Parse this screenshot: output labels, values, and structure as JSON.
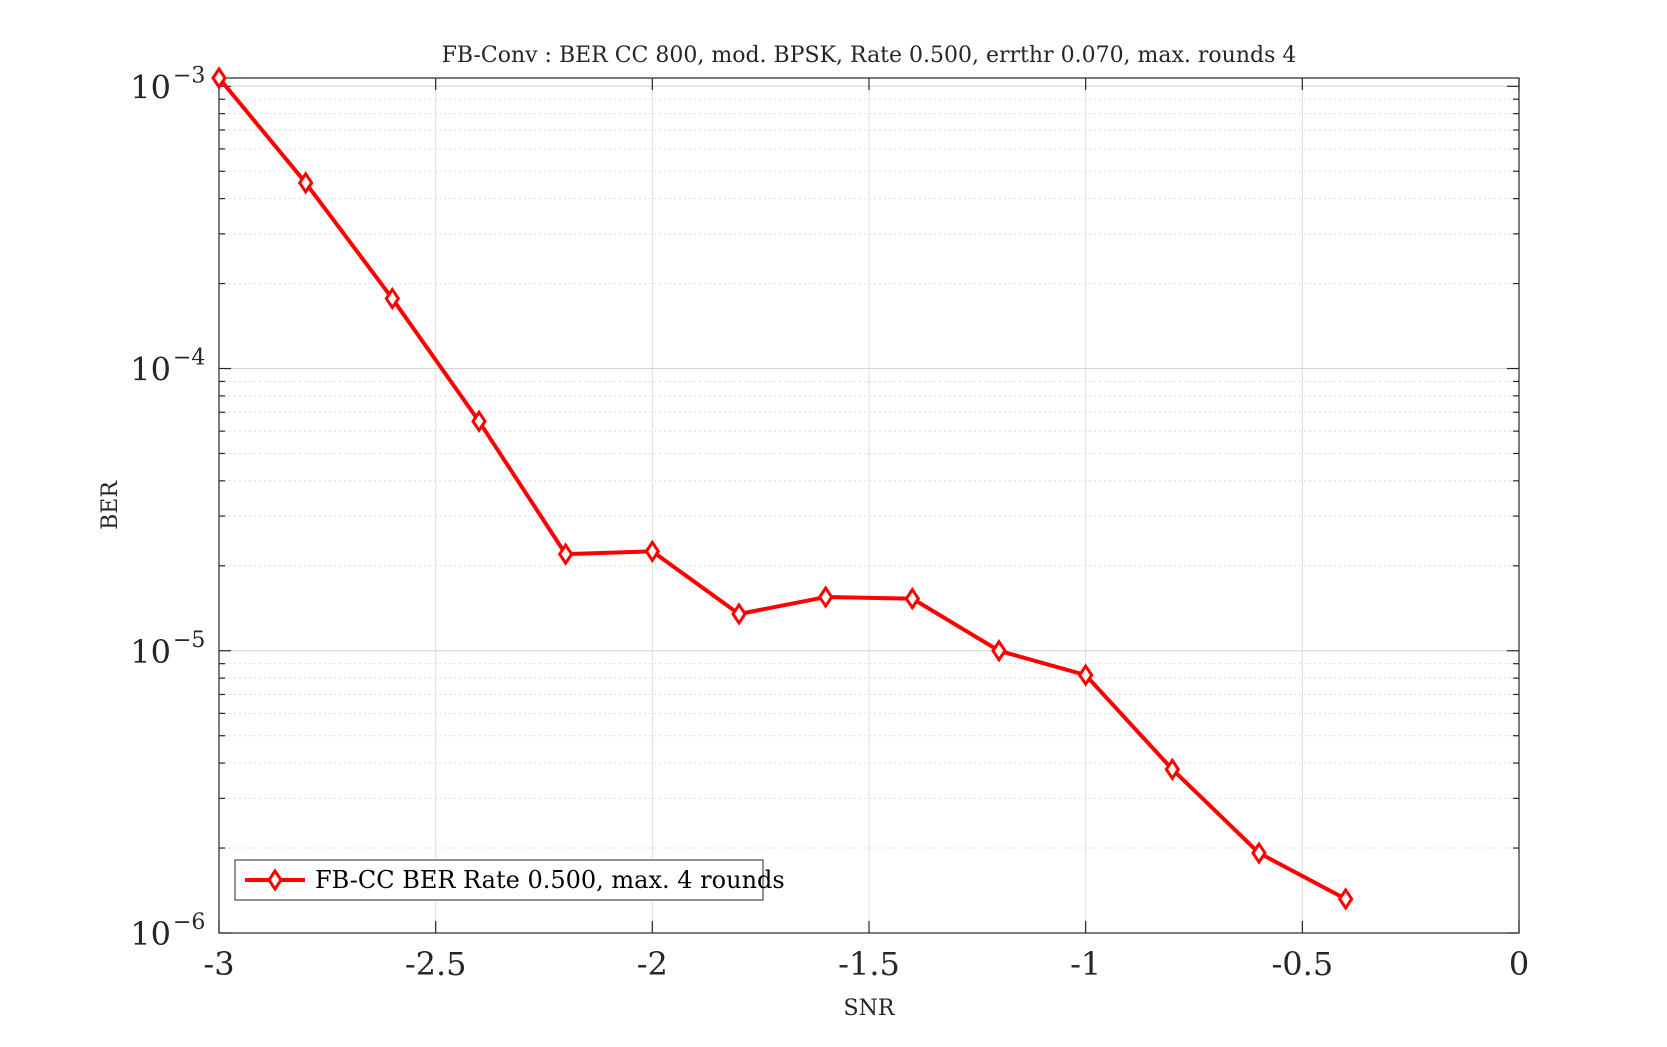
{
  "chart_data": {
    "type": "line",
    "title": "FB-Conv : BER CC 800, mod. BPSK, Rate 0.500, errthr 0.070, max. rounds 4",
    "xlabel": "SNR",
    "ylabel": "BER",
    "xlim": [
      -3,
      0
    ],
    "ylim": [
      1e-06,
      0.00107
    ],
    "yscale": "log",
    "grid": true,
    "legend_location": "bottom-left",
    "x_ticks": [
      {
        "value": -3,
        "label": "-3"
      },
      {
        "value": -2.5,
        "label": "-2.5"
      },
      {
        "value": -2,
        "label": "-2"
      },
      {
        "value": -1.5,
        "label": "-1.5"
      },
      {
        "value": -1,
        "label": "-1"
      },
      {
        "value": -0.5,
        "label": "-0.5"
      },
      {
        "value": 0,
        "label": "0"
      }
    ],
    "y_ticks": [
      {
        "value": 1e-06,
        "base": "10",
        "exp": "−6"
      },
      {
        "value": 1e-05,
        "base": "10",
        "exp": "−5"
      },
      {
        "value": 0.0001,
        "base": "10",
        "exp": "−4"
      },
      {
        "value": 0.001,
        "base": "10",
        "exp": "−3"
      }
    ],
    "series": [
      {
        "name": "FB-CC BER Rate 0.500, max. 4 rounds",
        "color": "#ff0000",
        "marker": "diamond",
        "x": [
          -3,
          -2.8,
          -2.6,
          -2.4,
          -2.2,
          -2.0,
          -1.8,
          -1.6,
          -1.4,
          -1.2,
          -1.0,
          -0.8,
          -0.6,
          -0.4
        ],
        "y": [
          0.00107,
          0.000455,
          0.000177,
          6.5e-05,
          2.2e-05,
          2.25e-05,
          1.35e-05,
          1.55e-05,
          1.53e-05,
          1e-05,
          8.2e-06,
          3.8e-06,
          1.92e-06,
          1.32e-06
        ]
      }
    ]
  }
}
